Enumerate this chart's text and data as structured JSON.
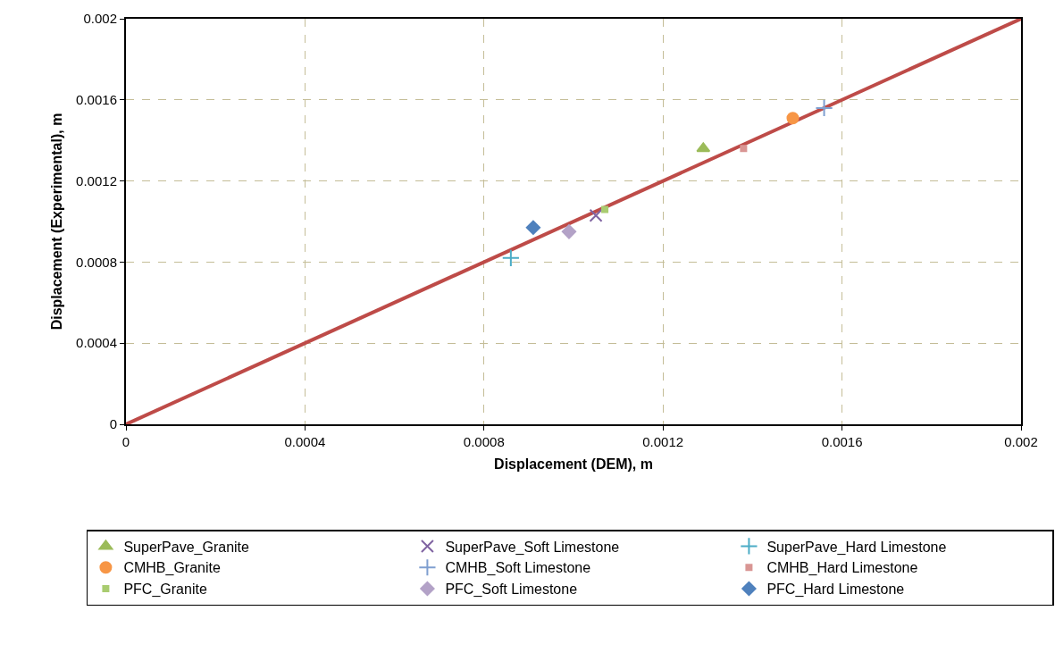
{
  "chart_data": {
    "type": "scatter",
    "xlabel": "Displacement (DEM), m",
    "ylabel": "Displacement (Experimental), m",
    "xlim": [
      0,
      0.002
    ],
    "xticks": [
      0,
      0.0004,
      0.0008,
      0.0012,
      0.0016,
      0.002
    ],
    "ylim": [
      0,
      0.002
    ],
    "yticks": [
      0,
      0.0004,
      0.0008,
      0.0012,
      0.0016,
      0.002
    ],
    "grid": true,
    "legend": "bottom",
    "series": [
      {
        "type": "line",
        "color": "#be4b48",
        "x": [
          0,
          0.002
        ],
        "values": [
          0,
          0.002
        ],
        "marker": "none",
        "line_style": "solid"
      },
      {
        "name": "SuperPave_Granite",
        "color": "#9bbb59",
        "marker": "triangle",
        "x": [
          0.00129
        ],
        "values": [
          0.00136
        ]
      },
      {
        "name": "SuperPave_Soft Limestone",
        "color": "#8064a2",
        "marker": "x",
        "x": [
          0.00105
        ],
        "values": [
          0.00103
        ]
      },
      {
        "name": "SuperPave_Hard Limestone",
        "color": "#4bacc6",
        "marker": "cross",
        "x": [
          0.00086
        ],
        "values": [
          0.00082
        ]
      },
      {
        "name": "CMHB_Granite",
        "color": "#f79646",
        "marker": "circle",
        "x": [
          0.00149
        ],
        "values": [
          0.00151
        ]
      },
      {
        "name": "CMHB_Soft Limestone",
        "color": "#7f9fd0",
        "marker": "cross",
        "x": [
          0.00156
        ],
        "values": [
          0.00156
        ]
      },
      {
        "name": "CMHB_Hard Limestone",
        "color": "#d99694",
        "marker": "square",
        "x": [
          0.00138
        ],
        "values": [
          0.00136
        ]
      },
      {
        "name": "PFC_Granite",
        "color": "#a9cc70",
        "marker": "square",
        "x": [
          0.00107
        ],
        "values": [
          0.00106
        ]
      },
      {
        "name": "PFC_Soft Limestone",
        "color": "#b3a2c7",
        "marker": "diamond",
        "x": [
          0.00099
        ],
        "values": [
          0.00095
        ]
      },
      {
        "name": "PFC_Hard Limestone",
        "color": "#4f81bd",
        "marker": "diamond",
        "x": [
          0.00091
        ],
        "values": [
          0.00097
        ]
      }
    ]
  }
}
